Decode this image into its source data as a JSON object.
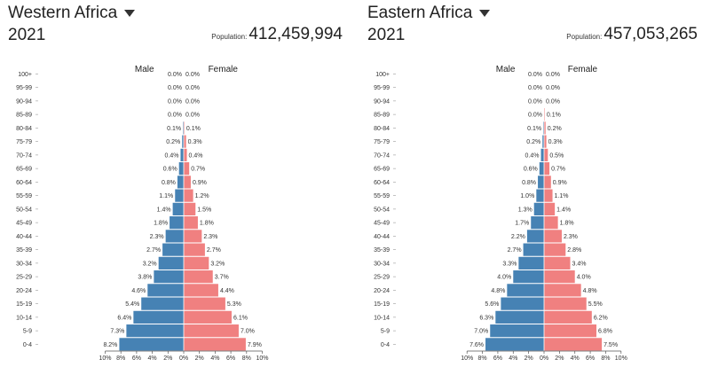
{
  "panels": [
    {
      "region": "Western Africa",
      "year": "2021",
      "population_label": "Population:",
      "population": "412,459,994"
    },
    {
      "region": "Eastern Africa",
      "year": "2021",
      "population_label": "Population:",
      "population": "457,053,265"
    }
  ],
  "chart_data": [
    {
      "type": "bar",
      "orientation": "horizontal-pyramid",
      "title": "Western Africa",
      "categories": [
        "0-4",
        "5-9",
        "10-14",
        "15-19",
        "20-24",
        "25-29",
        "30-34",
        "35-39",
        "40-44",
        "45-49",
        "50-54",
        "55-59",
        "60-64",
        "65-69",
        "70-74",
        "75-79",
        "80-84",
        "85-89",
        "90-94",
        "95-99",
        "100+"
      ],
      "series": [
        {
          "name": "Male",
          "color": "#4682b4",
          "values": [
            8.2,
            7.3,
            6.4,
            5.4,
            4.6,
            3.8,
            3.2,
            2.7,
            2.3,
            1.8,
            1.4,
            1.1,
            0.8,
            0.6,
            0.4,
            0.2,
            0.1,
            0.0,
            0.0,
            0.0,
            0.0
          ]
        },
        {
          "name": "Female",
          "color": "#f08080",
          "values": [
            7.9,
            7.0,
            6.1,
            5.3,
            4.4,
            3.7,
            3.2,
            2.7,
            2.3,
            1.8,
            1.5,
            1.2,
            0.9,
            0.7,
            0.4,
            0.3,
            0.1,
            0.0,
            0.0,
            0.0,
            0.0
          ]
        }
      ],
      "x_ticks": [
        "10%",
        "8%",
        "6%",
        "4%",
        "2%",
        "0%",
        "2%",
        "4%",
        "6%",
        "8%",
        "10%"
      ],
      "xlim": [
        -10,
        10
      ]
    },
    {
      "type": "bar",
      "orientation": "horizontal-pyramid",
      "title": "Eastern Africa",
      "categories": [
        "0-4",
        "5-9",
        "10-14",
        "15-19",
        "20-24",
        "25-29",
        "30-34",
        "35-39",
        "40-44",
        "45-49",
        "50-54",
        "55-59",
        "60-64",
        "65-69",
        "70-74",
        "75-79",
        "80-84",
        "85-89",
        "90-94",
        "95-99",
        "100+"
      ],
      "series": [
        {
          "name": "Male",
          "color": "#4682b4",
          "values": [
            7.6,
            7.0,
            6.3,
            5.6,
            4.8,
            4.0,
            3.3,
            2.7,
            2.2,
            1.7,
            1.3,
            1.0,
            0.8,
            0.6,
            0.4,
            0.2,
            0.1,
            0.0,
            0.0,
            0.0,
            0.0
          ]
        },
        {
          "name": "Female",
          "color": "#f08080",
          "values": [
            7.5,
            6.8,
            6.2,
            5.5,
            4.8,
            4.0,
            3.4,
            2.8,
            2.3,
            1.8,
            1.4,
            1.1,
            0.9,
            0.7,
            0.5,
            0.3,
            0.2,
            0.1,
            0.0,
            0.0,
            0.0
          ]
        }
      ],
      "x_ticks": [
        "10%",
        "8%",
        "6%",
        "4%",
        "2%",
        "0%",
        "2%",
        "4%",
        "6%",
        "8%",
        "10%"
      ],
      "xlim": [
        -10,
        10
      ]
    }
  ]
}
